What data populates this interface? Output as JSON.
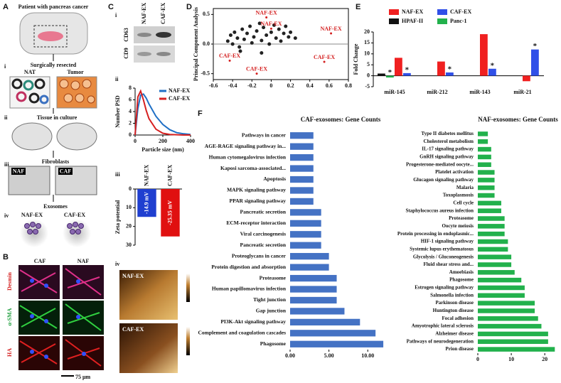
{
  "figure": {
    "A": {
      "label": "A",
      "patient": "Patient with pancreas cancer",
      "i": "i",
      "resected": "Surgically resected",
      "nat": "NAT",
      "tumor": "Tumor",
      "ii": "ii",
      "culture": "Tissue in culture",
      "iii": "iii",
      "fibroblasts": "Fibroblasts",
      "naf": "NAF",
      "caf": "CAF",
      "iv": "iv",
      "exosomes": "Exosomes",
      "naf_ex": "NAF-EX",
      "caf_ex": "CAF-EX"
    },
    "B": {
      "label": "B",
      "columns": [
        "CAF",
        "NAF"
      ],
      "rows": [
        "Desmin",
        "α-SMA",
        "HA"
      ],
      "scale": "75 μm"
    },
    "C": {
      "label": "C",
      "i": "i",
      "lanes": [
        "NAF-EX",
        "CAF-EX"
      ],
      "markers": [
        "CD63",
        "CD9"
      ],
      "ii": "ii",
      "iii": "iii",
      "iv": "iv",
      "afm": [
        "NAF-EX",
        "CAF-EX"
      ]
    },
    "D": {
      "label": "D"
    },
    "E": {
      "label": "E"
    },
    "F": {
      "label": "F"
    }
  },
  "chart_data": [
    {
      "type": "line",
      "ylabel": "Number PSD",
      "xlabel": "Particle size (nm)",
      "x": [
        0,
        20,
        40,
        60,
        80,
        100,
        150,
        200,
        250,
        300,
        350,
        400
      ],
      "series": [
        {
          "name": "NAF-EX",
          "color": "#1f6fc5",
          "values": [
            0,
            4.5,
            6.8,
            7.0,
            6.3,
            5.3,
            3.2,
            1.8,
            0.9,
            0.4,
            0.2,
            0.1
          ]
        },
        {
          "name": "CAF-EX",
          "color": "#d62020",
          "values": [
            0,
            6.5,
            7.5,
            6.0,
            4.2,
            2.8,
            1.0,
            0.3,
            0.1,
            0.05,
            0,
            0
          ]
        }
      ],
      "xlim": [
        0,
        400
      ],
      "ylim": [
        0,
        8
      ],
      "xticks": [
        0,
        200,
        400
      ],
      "yticks": [
        0,
        2,
        4,
        6,
        8
      ]
    },
    {
      "type": "bar",
      "ylabel": "Zeta potential",
      "categories": [
        "NAF-EX",
        "CAF-EX"
      ],
      "values": [
        -14.9,
        -25.35
      ],
      "value_labels": [
        "-14.9 mV",
        "-25.35 mV"
      ],
      "colors": [
        "#1f3fd0",
        "#e01010"
      ],
      "ylim": [
        -30,
        0
      ],
      "yticks": [
        0,
        {
          "value": -10,
          "label": "10"
        },
        {
          "value": -20,
          "label": "20"
        },
        {
          "value": -30,
          "label": "30"
        }
      ]
    },
    {
      "type": "scatter",
      "ylabel": "Principal Component Analysis",
      "color": "#222",
      "x": [
        -0.45,
        -0.42,
        -0.4,
        -0.38,
        -0.35,
        -0.33,
        -0.3,
        -0.28,
        -0.25,
        -0.22,
        -0.2,
        -0.18,
        -0.15,
        -0.12,
        -0.1,
        -0.08,
        -0.05,
        -0.02,
        0,
        0.03,
        0.05,
        0.08,
        0.1,
        0.13,
        0.15,
        0.18,
        0.2,
        0.25,
        -0.32,
        -0.1
      ],
      "values": [
        0.05,
        0.15,
        0.0,
        0.2,
        0.1,
        -0.05,
        0.25,
        0.08,
        0.18,
        0.3,
        0.02,
        0.12,
        0.22,
        0.35,
        0.06,
        0.28,
        0.15,
        0.0,
        0.2,
        0.32,
        0.1,
        0.25,
        0.05,
        0.18,
        0.3,
        0.12,
        0.2,
        0.1,
        -0.12,
        -0.15
      ],
      "annotations": [
        {
          "text": "NAF-EX",
          "x": -0.05,
          "y": 0.45
        },
        {
          "text": "NAF-EX",
          "x": 0.62,
          "y": 0.18
        },
        {
          "text": "NAF-EX",
          "x": 0.0,
          "y": 0.26
        },
        {
          "text": "CAF-EX",
          "x": -0.43,
          "y": -0.28
        },
        {
          "text": "CAF-EX",
          "x": -0.15,
          "y": -0.5
        },
        {
          "text": "CAF-EX",
          "x": 0.55,
          "y": -0.3
        }
      ],
      "xlim": [
        -0.6,
        0.8
      ],
      "ylim": [
        -0.6,
        0.6
      ],
      "xticks": [
        -0.6,
        -0.4,
        -0.2,
        0,
        0.2,
        0.4,
        0.6,
        0.8
      ],
      "yticks": [
        -0.5,
        {
          "value": 0,
          "label": "0.0"
        },
        0.5
      ]
    },
    {
      "type": "bar",
      "ylabel": "Fold Change",
      "categories": [
        "miR-145",
        "miR-212",
        "miR-143",
        "miR-21"
      ],
      "series": [
        {
          "name": "NAF-EX",
          "color": "#f02020",
          "values": [
            8.2,
            6.5,
            19,
            -2.5
          ],
          "significance": [
            null,
            null,
            null,
            null
          ]
        },
        {
          "name": "CAF-EX",
          "color": "#3050e8",
          "values": [
            1.2,
            1.5,
            3.2,
            12
          ],
          "significance": [
            "*",
            "*",
            "*",
            "*"
          ]
        },
        {
          "name": "HPAF-II",
          "color": "#111111",
          "values": [
            1,
            null,
            null,
            null
          ],
          "significance": [
            null,
            null,
            null,
            null
          ]
        },
        {
          "name": "Panc-1",
          "color": "#22b14c",
          "values": [
            -0.8,
            null,
            null,
            null
          ],
          "significance": [
            "*",
            null,
            null,
            null
          ]
        }
      ],
      "ylim": [
        -5,
        20
      ],
      "yticks": [
        -5,
        0,
        5,
        10,
        15,
        20
      ]
    },
    {
      "type": "hbar",
      "title": "CAF-exosomes: Gene Counts",
      "color": "#4472c4",
      "categories": [
        "Pathways in cancer",
        "AGE-RAGE signaling pathway in...",
        "Human cytomegalovirus infection",
        "Kaposi sarcoma-associated...",
        "Apoptosis",
        "MAPK signaling pathway",
        "PPAR signaling pathway",
        "Pancreatic secretion",
        "ECM-receptor interaction",
        "Viral carcinogenesis",
        "Pancreatic secretion",
        "Proteoglycans in cancer",
        "Protein digestion and absorption",
        "Proteasome",
        "Human papillomavirus infection",
        "Tight junction",
        "Gap junction",
        "PI3K-Akt signaling pathway",
        "Complement and coagulation cascades",
        "Phagosome"
      ],
      "values": [
        3,
        3,
        3,
        3,
        3,
        3,
        3,
        4,
        4,
        4,
        4,
        5,
        5,
        6,
        6,
        6,
        7,
        9,
        11,
        12
      ],
      "xlim": [
        0,
        13
      ],
      "xticks": [
        {
          "value": 0,
          "label": "0.00"
        },
        {
          "value": 5,
          "label": "5.00"
        },
        {
          "value": 10,
          "label": "10.00"
        }
      ]
    },
    {
      "type": "hbar",
      "title": "NAF-exosomes: Gene Counts",
      "color": "#22b14c",
      "categories": [
        "Type II diabetes mellitus",
        "Cholesterol metabolism",
        "IL-17 signaling pathway",
        "GnRH signaling pathway",
        "Progesterone-mediated oocyte...",
        "Platelet activation",
        "Glucagon signaling pathway",
        "Malaria",
        "Toxoplasmosis",
        "Cell cycle",
        "Staphylococcus aureus infection",
        "Proteasome",
        "Oocyte meiosis",
        "Protein processing in endoplasmic...",
        "HIF-1 signaling pathway",
        "Systemic lupus erythematosus",
        "Glycolysis / Gluconeogenesis",
        "Fluid shear stress and...",
        "Amoebiasis",
        "Phagosome",
        "Estrogen signaling pathway",
        "Salmonella infection",
        "Parkinson disease",
        "Huntington disease",
        "Focal adhesion",
        "Amyotrophic lateral sclerosis",
        "Alzheimer disease",
        "Pathways of neurodegeneration",
        "Prion disease"
      ],
      "values": [
        3,
        3,
        4,
        4,
        4,
        5,
        5,
        5,
        5,
        7,
        7,
        8,
        8,
        8,
        9,
        9,
        10,
        10,
        11,
        13,
        14,
        14,
        17,
        17,
        18,
        19,
        21,
        21,
        23
      ],
      "xlim": [
        0,
        24
      ],
      "xticks": [
        0,
        10,
        20
      ]
    }
  ]
}
